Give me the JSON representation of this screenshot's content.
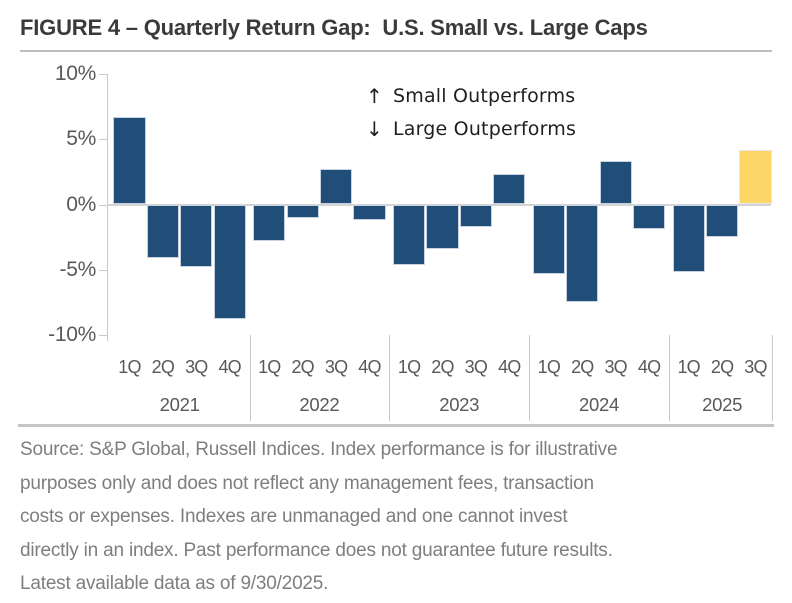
{
  "figure": {
    "title": "FIGURE 4 – Quarterly Return Gap:  U.S. Small vs. Large Caps"
  },
  "annotation": {
    "up_arrow": "↑",
    "up_label": "Small Outperforms",
    "down_arrow": "↓",
    "down_label": "Large Outperforms"
  },
  "chart_data": {
    "type": "bar",
    "title": "Quarterly Return Gap: U.S. Small vs. Large Caps",
    "xlabel": "",
    "ylabel": "",
    "ylim": [
      -10,
      10
    ],
    "grid": false,
    "legend": false,
    "y_ticks": [
      {
        "label": "10%",
        "value": 10
      },
      {
        "label": "5%",
        "value": 5
      },
      {
        "label": "0%",
        "value": 0
      },
      {
        "label": "-5%",
        "value": -5
      },
      {
        "label": "-10%",
        "value": -10
      }
    ],
    "groups": [
      {
        "year": "2021",
        "quarters": [
          "1Q",
          "2Q",
          "3Q",
          "4Q"
        ],
        "values": [
          6.7,
          -4.1,
          -4.8,
          -8.8
        ]
      },
      {
        "year": "2022",
        "quarters": [
          "1Q",
          "2Q",
          "3Q",
          "4Q"
        ],
        "values": [
          -2.8,
          -1.0,
          2.7,
          -1.2
        ]
      },
      {
        "year": "2023",
        "quarters": [
          "1Q",
          "2Q",
          "3Q",
          "4Q"
        ],
        "values": [
          -4.6,
          -3.4,
          -1.7,
          2.3
        ]
      },
      {
        "year": "2024",
        "quarters": [
          "1Q",
          "2Q",
          "3Q",
          "4Q"
        ],
        "values": [
          -5.3,
          -7.5,
          3.3,
          -1.9
        ]
      },
      {
        "year": "2025",
        "quarters": [
          "1Q",
          "2Q",
          "3Q"
        ],
        "values": [
          -5.2,
          -2.5,
          4.2
        ]
      }
    ],
    "highlight": {
      "year": "2025",
      "quarter": "3Q"
    }
  },
  "colors": {
    "bar_blue": "#214e78",
    "bar_highlight": "#fcd768",
    "bar_outline": "#c9d3df",
    "axis_line": "#c9c9c9",
    "zero_line": "#d4d4d4",
    "tick_label": "#595959",
    "title_text": "#3a3a3a",
    "annotation_text": "#1f1f1f",
    "divider": "#c5c5c5",
    "source_text": "#7e7e7e"
  },
  "footer": {
    "source_lines": [
      "Source: S&P Global, Russell Indices. Index performance is for illustrative",
      "purposes only and does not reflect any management fees, transaction",
      "costs or expenses. Indexes are unmanaged and one cannot invest",
      "directly in an index. Past performance does not guarantee future results.",
      "Latest available data as of 9/30/2025."
    ]
  }
}
